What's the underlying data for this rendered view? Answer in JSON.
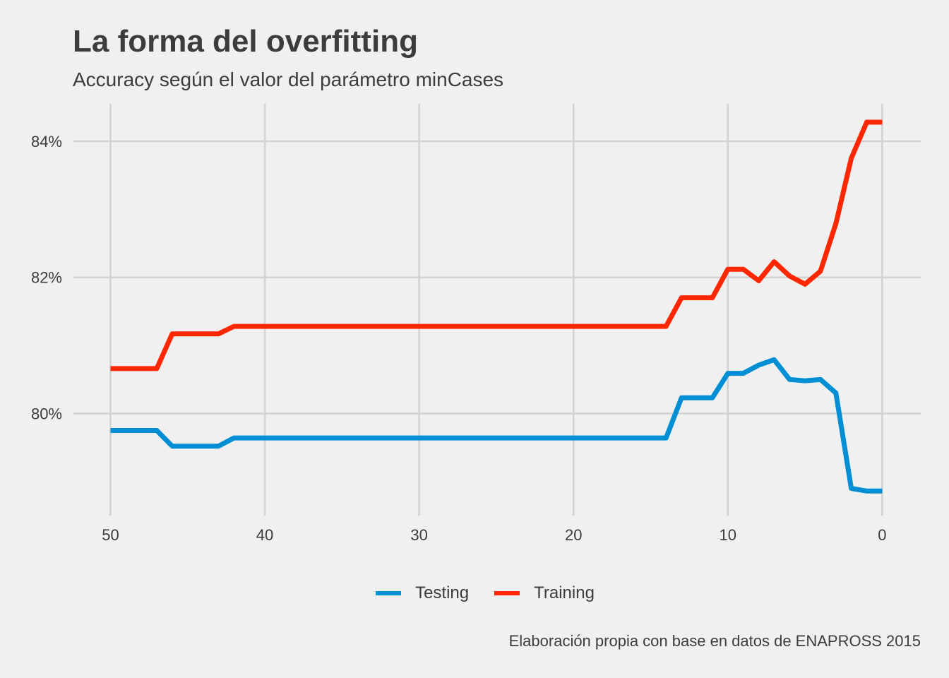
{
  "chart_data": {
    "type": "line",
    "title": "La forma del overfitting",
    "subtitle": "Accuracy según el valor del parámetro minCases",
    "caption": "Elaboración propia con base en datos de ENAPROSS 2015",
    "xlabel": "",
    "ylabel": "",
    "x_reversed": true,
    "xlim": [
      52.4,
      -2.5
    ],
    "ylim": [
      78.5,
      84.55
    ],
    "x_ticks": [
      50,
      40,
      30,
      20,
      10,
      0
    ],
    "x_tick_labels": [
      "50",
      "40",
      "30",
      "20",
      "10",
      "0"
    ],
    "y_ticks": [
      80,
      82,
      84
    ],
    "y_tick_labels": [
      "80%",
      "82%",
      "84%"
    ],
    "grid": true,
    "legend_position": "bottom",
    "x": [
      50,
      49,
      48,
      47,
      46,
      45,
      44,
      43,
      42,
      41,
      40,
      39,
      38,
      37,
      36,
      35,
      34,
      33,
      32,
      31,
      30,
      29,
      28,
      27,
      26,
      25,
      24,
      23,
      22,
      21,
      20,
      19,
      18,
      17,
      16,
      15,
      14,
      13,
      12,
      11,
      10,
      9,
      8,
      7,
      6,
      5,
      4,
      3,
      2,
      1,
      0
    ],
    "series": [
      {
        "name": "Testing",
        "color": "#008fd5",
        "values": [
          79.75,
          79.75,
          79.75,
          79.75,
          79.52,
          79.52,
          79.52,
          79.52,
          79.64,
          79.64,
          79.64,
          79.64,
          79.64,
          79.64,
          79.64,
          79.64,
          79.64,
          79.64,
          79.64,
          79.64,
          79.64,
          79.64,
          79.64,
          79.64,
          79.64,
          79.64,
          79.64,
          79.64,
          79.64,
          79.64,
          79.64,
          79.64,
          79.64,
          79.64,
          79.64,
          79.64,
          79.64,
          80.23,
          80.23,
          80.23,
          80.59,
          80.59,
          80.71,
          80.79,
          80.5,
          80.48,
          80.5,
          80.3,
          78.9,
          78.86,
          78.86
        ]
      },
      {
        "name": "Training",
        "color": "#ff2700",
        "values": [
          80.66,
          80.66,
          80.66,
          80.66,
          81.17,
          81.17,
          81.17,
          81.17,
          81.28,
          81.28,
          81.28,
          81.28,
          81.28,
          81.28,
          81.28,
          81.28,
          81.28,
          81.28,
          81.28,
          81.28,
          81.28,
          81.28,
          81.28,
          81.28,
          81.28,
          81.28,
          81.28,
          81.28,
          81.28,
          81.28,
          81.28,
          81.28,
          81.28,
          81.28,
          81.28,
          81.28,
          81.28,
          81.7,
          81.7,
          81.7,
          82.12,
          82.12,
          81.95,
          82.23,
          82.02,
          81.9,
          82.09,
          82.79,
          83.75,
          84.28,
          84.28
        ]
      }
    ]
  }
}
